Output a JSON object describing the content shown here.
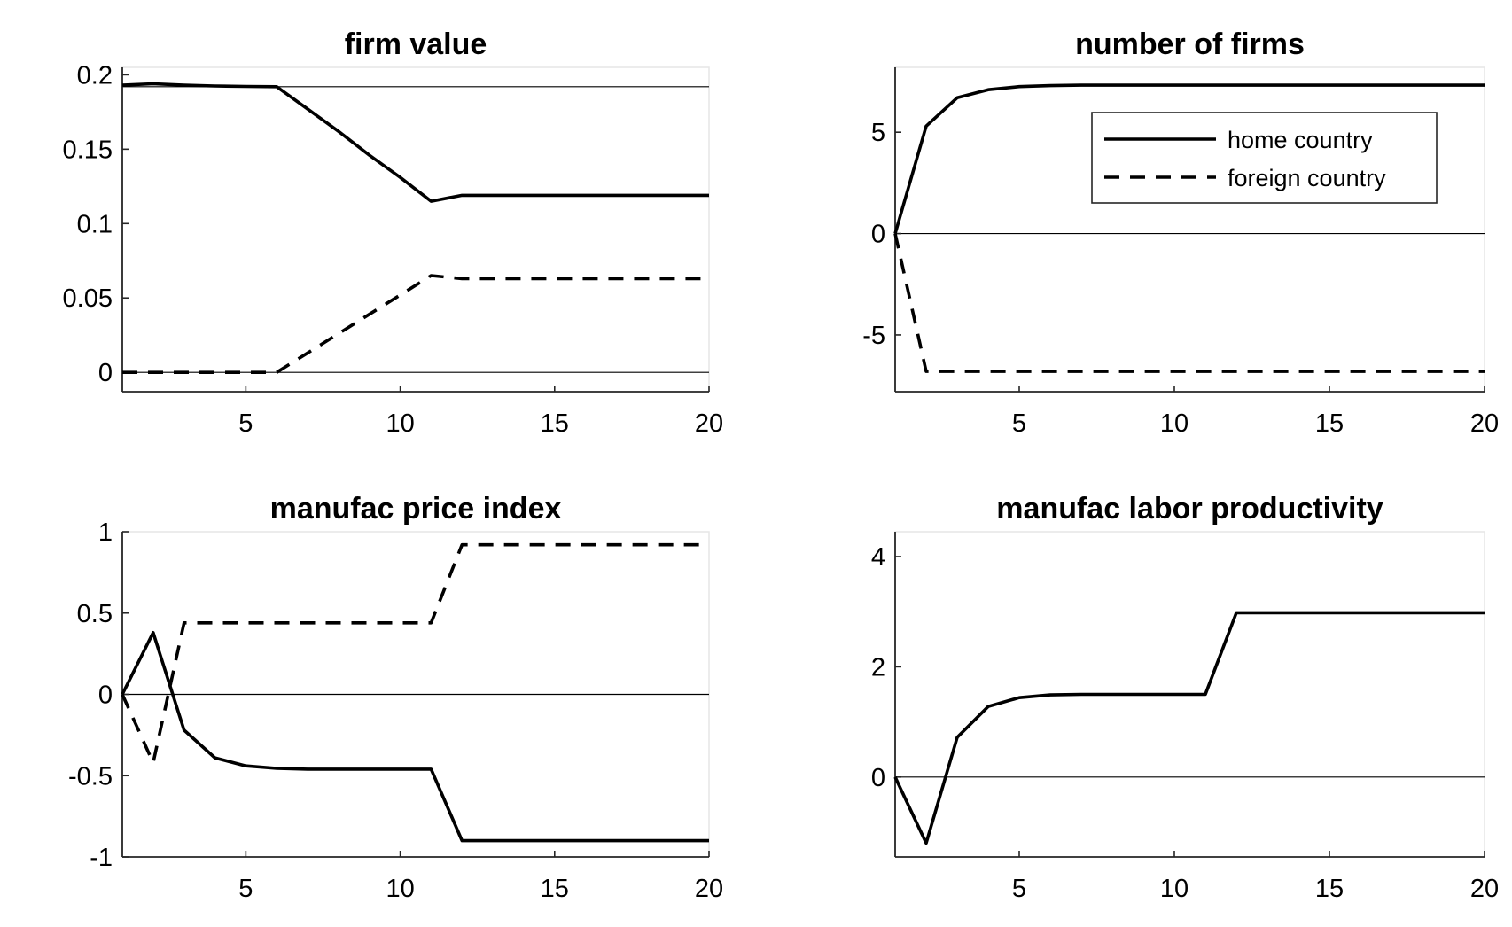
{
  "chart_data": [
    {
      "type": "line",
      "title": "firm value",
      "xlim": [
        1,
        20
      ],
      "ylim": [
        -0.013,
        0.205
      ],
      "xticks": [
        5,
        10,
        15,
        20
      ],
      "yticks": [
        0,
        0.05,
        0.1,
        0.15,
        0.2
      ],
      "ytick_labels": [
        "0",
        "0.05",
        "0.1",
        "0.15",
        "0.2"
      ],
      "reference_lines": [
        0,
        0.192
      ],
      "series": [
        {
          "style": "solid",
          "x": [
            1,
            2,
            3,
            4,
            5,
            6,
            7,
            8,
            9,
            10,
            11,
            12,
            13,
            14,
            15,
            16,
            17,
            18,
            19,
            20
          ],
          "y": [
            0.193,
            0.194,
            0.193,
            0.1925,
            0.1922,
            0.192,
            0.177,
            0.162,
            0.146,
            0.131,
            0.115,
            0.119,
            0.119,
            0.119,
            0.119,
            0.119,
            0.119,
            0.119,
            0.119,
            0.119
          ]
        },
        {
          "style": "dashed",
          "x": [
            1,
            2,
            3,
            4,
            5,
            6,
            7,
            8,
            9,
            10,
            11,
            12,
            13,
            14,
            15,
            16,
            17,
            18,
            19,
            20
          ],
          "y": [
            0,
            0,
            0,
            0,
            0,
            0,
            0.013,
            0.026,
            0.039,
            0.052,
            0.065,
            0.063,
            0.063,
            0.063,
            0.063,
            0.063,
            0.063,
            0.063,
            0.063,
            0.063
          ]
        }
      ]
    },
    {
      "type": "line",
      "title": "number of firms",
      "xlim": [
        1,
        20
      ],
      "ylim": [
        -7.8,
        8.2
      ],
      "xticks": [
        5,
        10,
        15,
        20
      ],
      "yticks": [
        -5,
        0,
        5
      ],
      "ytick_labels": [
        "-5",
        "0",
        "5"
      ],
      "reference_lines": [
        0
      ],
      "legend": {
        "position": "top-right",
        "entries": [
          {
            "label": "home country",
            "style": "solid"
          },
          {
            "label": "foreign country",
            "style": "dashed"
          }
        ]
      },
      "series": [
        {
          "style": "solid",
          "x": [
            1,
            2,
            3,
            4,
            5,
            6,
            7,
            8,
            9,
            10,
            11,
            12,
            13,
            14,
            15,
            16,
            17,
            18,
            19,
            20
          ],
          "y": [
            0,
            5.3,
            6.7,
            7.1,
            7.25,
            7.3,
            7.32,
            7.32,
            7.32,
            7.32,
            7.32,
            7.32,
            7.32,
            7.32,
            7.32,
            7.32,
            7.32,
            7.32,
            7.32,
            7.32
          ]
        },
        {
          "style": "dashed",
          "x": [
            1,
            2,
            3,
            4,
            5,
            6,
            7,
            8,
            9,
            10,
            11,
            12,
            13,
            14,
            15,
            16,
            17,
            18,
            19,
            20
          ],
          "y": [
            0,
            -6.8,
            -6.8,
            -6.8,
            -6.8,
            -6.8,
            -6.8,
            -6.8,
            -6.8,
            -6.8,
            -6.8,
            -6.8,
            -6.8,
            -6.8,
            -6.8,
            -6.8,
            -6.8,
            -6.8,
            -6.8,
            -6.8
          ]
        }
      ]
    },
    {
      "type": "line",
      "title": "manufac price index",
      "xlim": [
        1,
        20
      ],
      "ylim": [
        -1,
        1
      ],
      "xticks": [
        5,
        10,
        15,
        20
      ],
      "yticks": [
        -1,
        -0.5,
        0,
        0.5,
        1
      ],
      "ytick_labels": [
        "-1",
        "-0.5",
        "0",
        "0.5",
        "1"
      ],
      "reference_lines": [
        0
      ],
      "series": [
        {
          "style": "solid",
          "x": [
            1,
            2,
            3,
            4,
            5,
            6,
            7,
            8,
            9,
            10,
            11,
            12,
            13,
            14,
            15,
            16,
            17,
            18,
            19,
            20
          ],
          "y": [
            0,
            0.38,
            -0.22,
            -0.39,
            -0.44,
            -0.455,
            -0.46,
            -0.46,
            -0.46,
            -0.46,
            -0.46,
            -0.9,
            -0.9,
            -0.9,
            -0.9,
            -0.9,
            -0.9,
            -0.9,
            -0.9,
            -0.9
          ]
        },
        {
          "style": "dashed",
          "x": [
            1,
            2,
            3,
            4,
            5,
            6,
            7,
            8,
            9,
            10,
            11,
            12,
            13,
            14,
            15,
            16,
            17,
            18,
            19,
            20
          ],
          "y": [
            0,
            -0.42,
            0.44,
            0.44,
            0.44,
            0.44,
            0.44,
            0.44,
            0.44,
            0.44,
            0.44,
            0.92,
            0.92,
            0.92,
            0.92,
            0.92,
            0.92,
            0.92,
            0.92,
            0.92
          ]
        }
      ]
    },
    {
      "type": "line",
      "title": "manufac labor productivity",
      "xlim": [
        1,
        20
      ],
      "ylim": [
        -1.45,
        4.45
      ],
      "xticks": [
        5,
        10,
        15,
        20
      ],
      "yticks": [
        0,
        2,
        4
      ],
      "ytick_labels": [
        "0",
        "2",
        "4"
      ],
      "reference_lines": [
        0
      ],
      "series": [
        {
          "style": "solid",
          "x": [
            1,
            2,
            3,
            4,
            5,
            6,
            7,
            8,
            9,
            10,
            11,
            12,
            13,
            14,
            15,
            16,
            17,
            18,
            19,
            20
          ],
          "y": [
            0,
            -1.2,
            0.72,
            1.28,
            1.44,
            1.49,
            1.5,
            1.5,
            1.5,
            1.5,
            1.5,
            2.98,
            2.98,
            2.98,
            2.98,
            2.98,
            2.98,
            2.98,
            2.98,
            2.98
          ]
        }
      ]
    }
  ]
}
